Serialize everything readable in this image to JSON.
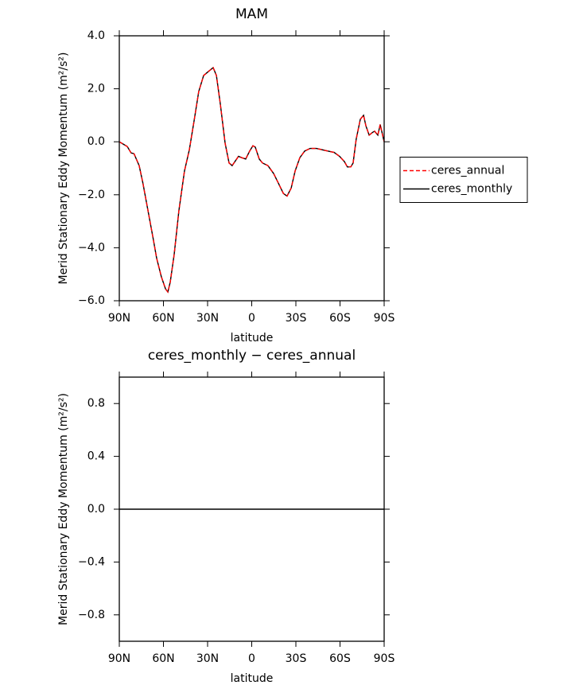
{
  "chart_data": [
    {
      "type": "line",
      "title": "MAM",
      "xlabel": "latitude",
      "ylabel": "Merid Stationary Eddy Momentum  (m²/s²)",
      "x": [
        90,
        87,
        84.6,
        82,
        80,
        76.5,
        74,
        70.5,
        67,
        64.6,
        61.4,
        58.6,
        57,
        55.4,
        52.7,
        49.5,
        45.7,
        42.4,
        39,
        36,
        32.7,
        29.5,
        26.2,
        24,
        21.4,
        18.1,
        15.4,
        13.3,
        9,
        6.8,
        4.1,
        1.4,
        -0.8,
        -2.4,
        -5.1,
        -7.3,
        -11,
        -14.9,
        -18,
        -21.5,
        -24,
        -26.8,
        -29.5,
        -32.7,
        -36,
        -39.7,
        -44,
        -47.8,
        -51.6,
        -56,
        -59.7,
        -63,
        -65,
        -67.3,
        -68.9,
        -71,
        -73.8,
        -76,
        -77.6,
        -79.8,
        -82,
        -83.5,
        -85.7,
        -87.3,
        -90
      ],
      "series": [
        {
          "name": "ceres_monthly",
          "color": "#000000",
          "line_style": "solid",
          "values": [
            0,
            -0.1,
            -0.18,
            -0.42,
            -0.45,
            -0.9,
            -1.55,
            -2.6,
            -3.65,
            -4.4,
            -5.1,
            -5.55,
            -5.67,
            -5.3,
            -4.25,
            -2.6,
            -1.1,
            -0.3,
            0.85,
            1.9,
            2.5,
            2.65,
            2.8,
            2.5,
            1.45,
            -0.05,
            -0.8,
            -0.9,
            -0.55,
            -0.6,
            -0.65,
            -0.35,
            -0.15,
            -0.2,
            -0.65,
            -0.8,
            -0.9,
            -1.2,
            -1.55,
            -1.95,
            -2.05,
            -1.75,
            -1.1,
            -0.6,
            -0.35,
            -0.25,
            -0.25,
            -0.3,
            -0.35,
            -0.4,
            -0.55,
            -0.75,
            -0.95,
            -0.95,
            -0.8,
            0.1,
            0.85,
            1.0,
            0.6,
            0.25,
            0.35,
            0.4,
            0.25,
            0.65,
            0
          ]
        },
        {
          "name": "ceres_annual",
          "color": "#ff0000",
          "line_style": "dashed",
          "values": [
            0,
            -0.1,
            -0.18,
            -0.42,
            -0.45,
            -0.9,
            -1.55,
            -2.6,
            -3.65,
            -4.4,
            -5.1,
            -5.55,
            -5.67,
            -5.3,
            -4.25,
            -2.6,
            -1.1,
            -0.3,
            0.85,
            1.9,
            2.5,
            2.65,
            2.8,
            2.5,
            1.45,
            -0.05,
            -0.8,
            -0.9,
            -0.55,
            -0.6,
            -0.65,
            -0.35,
            -0.15,
            -0.2,
            -0.65,
            -0.8,
            -0.9,
            -1.2,
            -1.55,
            -1.95,
            -2.05,
            -1.75,
            -1.1,
            -0.6,
            -0.35,
            -0.25,
            -0.25,
            -0.3,
            -0.35,
            -0.4,
            -0.55,
            -0.75,
            -0.95,
            -0.95,
            -0.8,
            0.1,
            0.85,
            1.0,
            0.6,
            0.25,
            0.35,
            0.4,
            0.25,
            0.65,
            0
          ]
        }
      ],
      "xlim": [
        90,
        -90
      ],
      "xticks": [
        {
          "value": 90,
          "label": "90N"
        },
        {
          "value": 60,
          "label": "60N"
        },
        {
          "value": 30,
          "label": "30N"
        },
        0,
        {
          "value": -30,
          "label": "30S"
        },
        {
          "value": -60,
          "label": "60S"
        },
        {
          "value": -90,
          "label": "90S"
        }
      ],
      "ylim": [
        -6,
        4
      ],
      "yticks": [
        {
          "value": -6,
          "label": "−6.0"
        },
        {
          "value": -4,
          "label": "−4.0"
        },
        {
          "value": -2,
          "label": "−2.0"
        },
        {
          "value": 0,
          "label": "0.0"
        },
        {
          "value": 2,
          "label": "2.0"
        },
        {
          "value": 4,
          "label": "4.0"
        }
      ],
      "legend": "right"
    },
    {
      "type": "line",
      "title": "ceres_monthly − ceres_annual",
      "xlabel": "latitude",
      "ylabel": "Merid Stationary Eddy Momentum  (m²/s²)",
      "x": [
        90,
        -90
      ],
      "series": [
        {
          "color": "#000000",
          "line_style": "solid",
          "values": [
            0,
            0
          ]
        }
      ],
      "xlim": [
        90,
        -90
      ],
      "xticks": [
        {
          "value": 90,
          "label": "90N"
        },
        {
          "value": 60,
          "label": "60N"
        },
        {
          "value": 30,
          "label": "30N"
        },
        0,
        {
          "value": -30,
          "label": "30S"
        },
        {
          "value": -60,
          "label": "60S"
        },
        {
          "value": -90,
          "label": "90S"
        }
      ],
      "ylim": [
        -1,
        1
      ],
      "yticks": [
        {
          "value": -0.8,
          "label": "−0.8"
        },
        {
          "value": -0.4,
          "label": "−0.4"
        },
        {
          "value": 0,
          "label": "0.0"
        },
        {
          "value": 0.4,
          "label": "0.4"
        },
        {
          "value": 0.8,
          "label": "0.8"
        }
      ]
    }
  ]
}
